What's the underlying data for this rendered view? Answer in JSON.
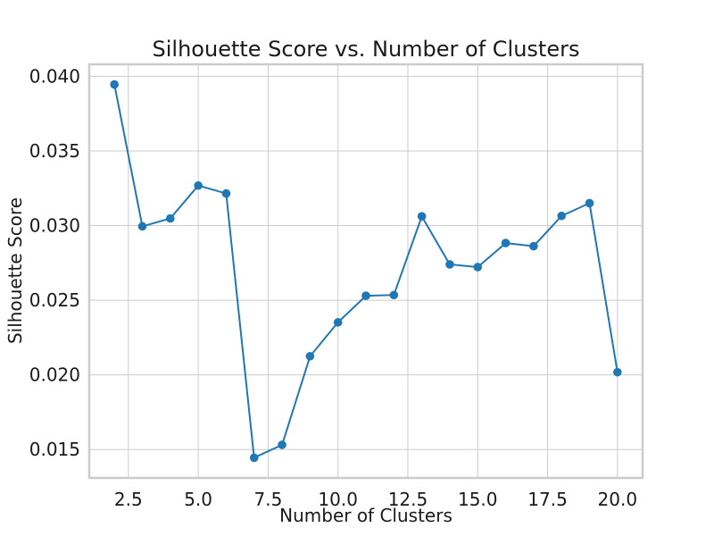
{
  "chart_data": {
    "type": "line",
    "title": "Silhouette Score vs. Number of Clusters",
    "xlabel": "Number of Clusters",
    "ylabel": "Silhouette Score",
    "xlim": [
      1.1,
      20.9
    ],
    "ylim": [
      0.0131,
      0.0408
    ],
    "xticks": [
      2.5,
      5.0,
      7.5,
      10.0,
      12.5,
      15.0,
      17.5,
      20.0
    ],
    "xtick_labels": [
      "2.5",
      "5.0",
      "7.5",
      "10.0",
      "12.5",
      "15.0",
      "17.5",
      "20.0"
    ],
    "yticks": [
      0.015,
      0.02,
      0.025,
      0.03,
      0.035,
      0.04
    ],
    "ytick_labels": [
      "0.015",
      "0.020",
      "0.025",
      "0.030",
      "0.035",
      "0.040"
    ],
    "grid": true,
    "series": [
      {
        "color": "#1f77b4",
        "marker": "circle",
        "x": [
          2,
          3,
          4,
          5,
          6,
          7,
          8,
          9,
          10,
          11,
          12,
          13,
          14,
          15,
          16,
          17,
          18,
          19,
          20
        ],
        "y": [
          0.03945,
          0.02995,
          0.03048,
          0.03268,
          0.03215,
          0.01445,
          0.01532,
          0.02125,
          0.02352,
          0.0253,
          0.02535,
          0.03062,
          0.0274,
          0.02722,
          0.02883,
          0.02862,
          0.03065,
          0.0315,
          0.02018
        ]
      }
    ]
  },
  "colors": {
    "background": "#ffffff",
    "grid": "#cccccc",
    "spine": "#cccccc",
    "series": "#1f77b4"
  }
}
